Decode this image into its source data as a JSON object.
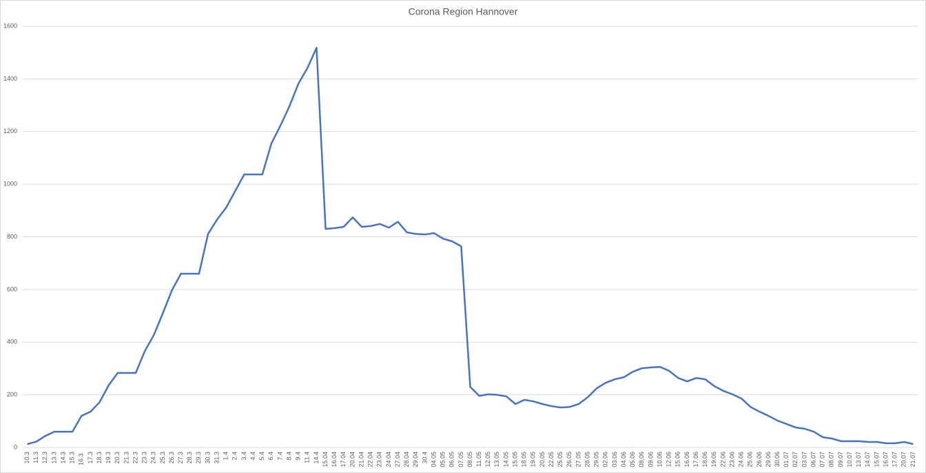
{
  "chart_data": {
    "type": "line",
    "title": "Corona Region Hannover",
    "categories": [
      "10.3",
      "11.3",
      "12.3",
      "13.3",
      "14.3",
      "15.3",
      "16.3.",
      "17.3",
      "18.3",
      "19.3",
      "20.3",
      "21.3",
      "22.3",
      "23.3",
      "24.3",
      "25.3",
      "26.3",
      "27.3",
      "28.3",
      "29.3",
      "30.3",
      "31.3",
      "1.4",
      "2.4",
      "3.4",
      "4.4",
      "5.4",
      "6.4",
      "7.4",
      "8.4",
      "9.4",
      "11.4",
      "14.4",
      "15.04",
      "16.04",
      "17.04",
      "20.04",
      "21.04",
      "22.04",
      "23.04",
      "24.04",
      "27.04",
      "28.04",
      "29.04",
      "30.4",
      "04.05",
      "05.05",
      "06.05",
      "07.05",
      "08.05",
      "11.05",
      "12.05",
      "13.05",
      "14.05",
      "15.05",
      "18.05",
      "19.05",
      "20.05",
      "22.05",
      "25.05",
      "26.05",
      "27.05",
      "28.05",
      "29.05",
      "02.06",
      "03.06",
      "04.06",
      "05.06",
      "08.06",
      "09.06",
      "10.06",
      "12.06",
      "15.06",
      "16.06",
      "17.06",
      "18.06",
      "19.06",
      "22.06",
      "23.06",
      "24.06",
      "25.06",
      "26.06",
      "29.06",
      "30.06",
      "01.07",
      "02.07",
      "03.07",
      "06.07",
      "07.07",
      "08.07",
      "09.07",
      "10.07",
      "13.07",
      "14.07",
      "15.07",
      "16.07",
      "17.07",
      "20.07",
      "21.07"
    ],
    "series": [
      {
        "color": "#4472c4",
        "values": [
          13,
          22,
          44,
          60,
          60,
          60,
          120,
          136,
          172,
          236,
          283,
          283,
          283,
          366,
          427,
          510,
          597,
          660,
          660,
          660,
          811,
          866,
          911,
          974,
          1037,
          1037,
          1037,
          1154,
          1222,
          1296,
          1382,
          1442,
          1518,
          830,
          833,
          838,
          874,
          838,
          841,
          849,
          835,
          857,
          817,
          811,
          809,
          814,
          793,
          783,
          764,
          230,
          196,
          202,
          200,
          194,
          165,
          181,
          175,
          165,
          157,
          152,
          154,
          165,
          191,
          225,
          246,
          259,
          267,
          288,
          301,
          304,
          306,
          291,
          264,
          251,
          264,
          259,
          233,
          215,
          202,
          186,
          154,
          136,
          120,
          102,
          89,
          76,
          71,
          60,
          39,
          34,
          24,
          24,
          24,
          21,
          21,
          16,
          16,
          21,
          13
        ]
      }
    ],
    "ylim": [
      0,
      1600
    ],
    "yticks": [
      0,
      200,
      400,
      600,
      800,
      1000,
      1200,
      1400,
      1600
    ],
    "grid": true
  }
}
